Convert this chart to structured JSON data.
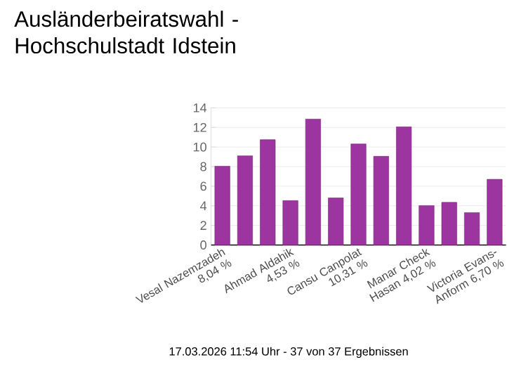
{
  "chart_data": {
    "type": "bar",
    "title": "Ausländerbeiratswahl - Hochschulstadt Idstein",
    "categories": [
      "Vesal Nazemzadeh 8,04 %",
      null,
      null,
      "Ahmad Aldahik 4,53 %",
      null,
      null,
      "Cansu Canpolat 10,31 %",
      null,
      null,
      "Manar Check Hasan 4,02 %",
      null,
      null,
      "Victoria Evans-Anform 6,70 %"
    ],
    "values": [
      8.04,
      9.1,
      10.75,
      4.53,
      12.85,
      4.8,
      10.31,
      9.05,
      12.05,
      4.02,
      4.35,
      3.3,
      6.7
    ],
    "color": "#9c35a0",
    "ylim": [
      0,
      14
    ],
    "yticks": [
      0,
      2,
      4,
      6,
      8,
      10,
      12,
      14
    ],
    "grid": "y",
    "annotations": [
      "17.03.2026 11:54 Uhr - 37 von 37 Ergebnissen"
    ]
  }
}
